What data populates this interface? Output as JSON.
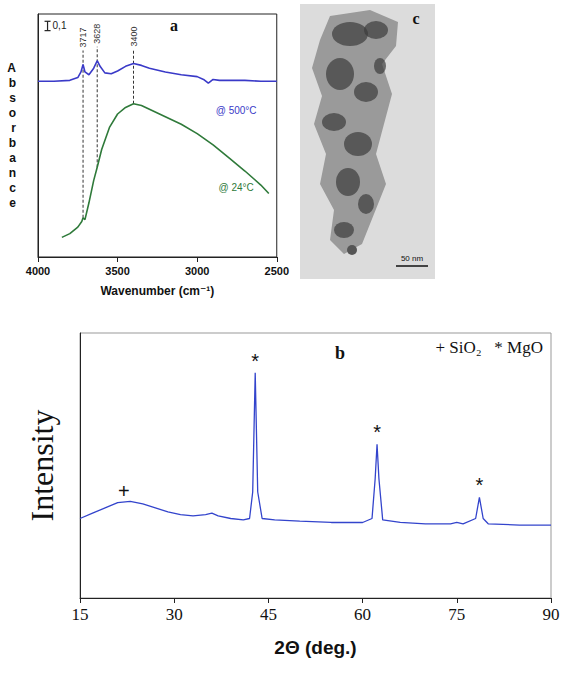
{
  "chart_data": [
    {
      "title": "a",
      "type": "line",
      "x_label": "Wavenumber (cm⁻¹)",
      "y_label": "Absorbance",
      "xlim": [
        4000,
        2500
      ],
      "xticks": [
        4000,
        3500,
        3000,
        2500
      ],
      "ylim": [
        0,
        2.6
      ],
      "tick_labels": "x",
      "scale_bar": {
        "value": 0.1,
        "label": "0,1"
      },
      "peaks": [
        3717,
        3628,
        3400
      ],
      "series": [
        {
          "name": "@ 500°C",
          "color": "#3a3ac8",
          "x": [
            4000,
            3900,
            3800,
            3750,
            3730,
            3717,
            3705,
            3680,
            3650,
            3628,
            3610,
            3580,
            3540,
            3500,
            3450,
            3400,
            3350,
            3300,
            3200,
            3100,
            3000,
            2960,
            2930,
            2900,
            2860,
            2800,
            2700,
            2600,
            2500
          ],
          "values": [
            1.88,
            1.88,
            1.89,
            1.92,
            1.98,
            2.06,
            1.98,
            1.95,
            2.02,
            2.1,
            2.04,
            1.97,
            1.96,
            1.99,
            2.04,
            2.07,
            2.05,
            2.02,
            1.98,
            1.95,
            1.93,
            1.9,
            1.86,
            1.9,
            1.89,
            1.89,
            1.89,
            1.88,
            1.88
          ]
        },
        {
          "name": "@ 24°C",
          "color": "#2f7a3a",
          "x": [
            3850,
            3800,
            3750,
            3725,
            3717,
            3705,
            3680,
            3650,
            3628,
            3600,
            3550,
            3500,
            3450,
            3400,
            3350,
            3300,
            3200,
            3100,
            3000,
            2900,
            2800,
            2700,
            2600,
            2550
          ],
          "values": [
            0.21,
            0.25,
            0.32,
            0.38,
            0.42,
            0.4,
            0.58,
            0.82,
            0.96,
            1.15,
            1.39,
            1.53,
            1.6,
            1.64,
            1.62,
            1.58,
            1.5,
            1.42,
            1.32,
            1.2,
            1.06,
            0.92,
            0.77,
            0.68
          ]
        }
      ]
    },
    {
      "title": "b",
      "type": "line",
      "x_label": "2Θ (deg.)",
      "y_label": "Intensity",
      "xlim": [
        15,
        90
      ],
      "xticks": [
        15,
        30,
        45,
        60,
        75,
        90
      ],
      "ylim": [
        0,
        100
      ],
      "tick_labels": "x",
      "color": "#3344cc",
      "phases": [
        {
          "symbol": "+",
          "label": "SiO₂"
        },
        {
          "symbol": "*",
          "label": "MgO"
        }
      ],
      "peak_marks": [
        {
          "x": 22,
          "symbol": "+"
        },
        {
          "x": 42.9,
          "symbol": "*"
        },
        {
          "x": 62.3,
          "symbol": "*"
        },
        {
          "x": 78.6,
          "symbol": "*"
        }
      ],
      "x": [
        15,
        17,
        19,
        21,
        23,
        25,
        27,
        29,
        31,
        33,
        35,
        36,
        37,
        39,
        41,
        42,
        42.5,
        42.9,
        43.3,
        44,
        46,
        50,
        55,
        60,
        61.5,
        62,
        62.3,
        62.6,
        63.2,
        66,
        70,
        74,
        75,
        76,
        78,
        78.6,
        79.2,
        80,
        85,
        90
      ],
      "values": [
        30,
        32,
        34,
        36,
        36.5,
        35.5,
        34,
        32.5,
        31.5,
        31,
        31.5,
        32,
        31,
        30,
        29.5,
        30,
        40,
        85,
        40,
        30,
        29.5,
        29,
        28.5,
        28.5,
        30,
        45,
        58,
        45,
        29.5,
        28.5,
        28,
        28,
        28.5,
        28,
        30,
        38,
        30,
        28,
        27.5,
        27.5
      ]
    }
  ],
  "image": {
    "title": "c",
    "scale_bar": "50 nm"
  }
}
